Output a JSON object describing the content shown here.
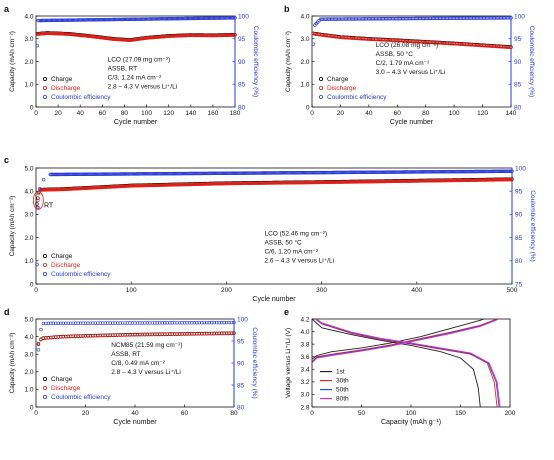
{
  "figure": {
    "panels": [
      "a",
      "b",
      "c",
      "d",
      "e"
    ]
  },
  "colors": {
    "charge": "#000000",
    "discharge": "#e8231b",
    "ce": "#2a3bd6",
    "e_1st": "#222222",
    "e_30th": "#e4281e",
    "e_50th": "#3547cc",
    "e_80th": "#d431cf"
  },
  "chart_data": [
    {
      "panel": "a",
      "type": "scatter",
      "xlabel": "Cycle number",
      "ylabel": "Capacity (mAh cm⁻²)",
      "y2label": "Coulombic efficiency (%)",
      "xlim": [
        0,
        180
      ],
      "ylim": [
        0,
        4.0
      ],
      "y2lim": [
        80,
        100
      ],
      "xticks": [
        "0",
        "20",
        "40",
        "60",
        "80",
        "100",
        "120",
        "140",
        "160",
        "180"
      ],
      "yticks": [
        "0",
        "1.0",
        "2.0",
        "3.0",
        "4.0"
      ],
      "y2ticks": [
        "80",
        "85",
        "90",
        "95",
        "100"
      ],
      "grid": false,
      "legend": [
        "Charge",
        "Discharge",
        "Coulombic efficiency"
      ],
      "legend_position": "bottom-left",
      "annotation": [
        "LCO (27.09 mg cm⁻²)",
        "ASSB, RT",
        "C/3, 1.24 mA cm⁻²",
        "2.8 – 4.3 V versus Li⁺/Li"
      ],
      "series": [
        {
          "name": "Charge",
          "axis": "left",
          "x_range": [
            1,
            180
          ],
          "points": [
            [
              1,
              3.22
            ],
            [
              10,
              3.26
            ],
            [
              30,
              3.22
            ],
            [
              50,
              3.12
            ],
            [
              70,
              3.0
            ],
            [
              85,
              2.95
            ],
            [
              100,
              3.05
            ],
            [
              120,
              3.13
            ],
            [
              140,
              3.17
            ],
            [
              160,
              3.16
            ],
            [
              180,
              3.18
            ]
          ]
        },
        {
          "name": "Discharge",
          "axis": "left",
          "x_range": [
            1,
            180
          ],
          "points": [
            [
              1,
              3.2
            ],
            [
              10,
              3.24
            ],
            [
              30,
              3.2
            ],
            [
              50,
              3.1
            ],
            [
              70,
              2.98
            ],
            [
              85,
              2.93
            ],
            [
              100,
              3.03
            ],
            [
              120,
              3.11
            ],
            [
              140,
              3.15
            ],
            [
              160,
              3.14
            ],
            [
              180,
              3.16
            ]
          ]
        },
        {
          "name": "Coulombic efficiency",
          "axis": "right",
          "x_range": [
            1,
            180
          ],
          "first_point": 93.5,
          "points": [
            [
              2,
              99.0
            ],
            [
              180,
              99.6
            ]
          ]
        }
      ]
    },
    {
      "panel": "b",
      "type": "scatter",
      "xlabel": "Cycle number",
      "ylabel": "Capacity (mAh cm⁻²)",
      "y2label": "Coulombic efficiency (%)",
      "xlim": [
        0,
        140
      ],
      "ylim": [
        0,
        4.0
      ],
      "y2lim": [
        80,
        100
      ],
      "xticks": [
        "0",
        "20",
        "40",
        "60",
        "80",
        "100",
        "120",
        "140"
      ],
      "yticks": [
        "0",
        "1.0",
        "2.0",
        "3.0",
        "4.0"
      ],
      "y2ticks": [
        "80",
        "85",
        "90",
        "95",
        "100"
      ],
      "grid": false,
      "legend": [
        "Charge",
        "Discharge",
        "Coulombic efficiency"
      ],
      "legend_position": "bottom-left",
      "annotation": [
        "LCO (26.08 mg cm⁻²)",
        "ASSB, 50 °C",
        "C/2, 1.79 mA cm⁻²",
        "3.0 – 4.3 V versus Li⁺/Li"
      ],
      "series": [
        {
          "name": "Charge",
          "axis": "left",
          "x_range": [
            1,
            140
          ],
          "points": [
            [
              1,
              3.24
            ],
            [
              5,
              3.2
            ],
            [
              20,
              3.08
            ],
            [
              40,
              3.0
            ],
            [
              60,
              2.94
            ],
            [
              80,
              2.87
            ],
            [
              100,
              2.8
            ],
            [
              120,
              2.72
            ],
            [
              140,
              2.64
            ]
          ]
        },
        {
          "name": "Discharge",
          "axis": "left",
          "x_range": [
            1,
            140
          ],
          "points": [
            [
              1,
              3.22
            ],
            [
              5,
              3.18
            ],
            [
              20,
              3.06
            ],
            [
              40,
              2.98
            ],
            [
              60,
              2.92
            ],
            [
              80,
              2.85
            ],
            [
              100,
              2.78
            ],
            [
              120,
              2.7
            ],
            [
              140,
              2.62
            ]
          ]
        },
        {
          "name": "Coulombic efficiency",
          "axis": "right",
          "x_range": [
            1,
            140
          ],
          "first_point": 93.8,
          "points": [
            [
              2,
              98.0
            ],
            [
              6,
              99.3
            ],
            [
              140,
              99.6
            ]
          ]
        }
      ]
    },
    {
      "panel": "c",
      "type": "scatter",
      "xlabel": "Cycle number",
      "ylabel": "Capacity (mAh cm⁻²)",
      "y2label": "Coulombic efficiency (%)",
      "xlim": [
        0,
        500
      ],
      "ylim": [
        0,
        5.0
      ],
      "y2lim": [
        75,
        100
      ],
      "xticks": [
        "0",
        "100",
        "200",
        "300",
        "400",
        "500"
      ],
      "yticks": [
        "0",
        "1.0",
        "2.0",
        "3.0",
        "4.0",
        "5.0"
      ],
      "y2ticks": [
        "75",
        "80",
        "85",
        "90",
        "95",
        "100"
      ],
      "grid": false,
      "legend": [
        "Charge",
        "Discharge",
        "Coulombic efficiency"
      ],
      "legend_position": "bottom-left",
      "annotation": [
        "LCO (52.46 mg cm⁻²)",
        "ASSB, 50 °C",
        "C/6, 1.20 mA cm⁻²",
        "2.6 – 4.3 V versus Li⁺/Li"
      ],
      "inset_label": "RT",
      "series": [
        {
          "name": "Charge",
          "axis": "left",
          "x_range": [
            1,
            500
          ],
          "first_points": [
            [
              1,
              3.45
            ],
            [
              2,
              3.7
            ],
            [
              3,
              3.95
            ]
          ],
          "points": [
            [
              5,
              4.07
            ],
            [
              30,
              4.1
            ],
            [
              100,
              4.25
            ],
            [
              200,
              4.35
            ],
            [
              300,
              4.4
            ],
            [
              400,
              4.46
            ],
            [
              500,
              4.52
            ]
          ]
        },
        {
          "name": "Discharge",
          "axis": "left",
          "x_range": [
            1,
            500
          ],
          "first_points": [
            [
              1,
              3.3
            ],
            [
              2,
              3.6
            ],
            [
              3,
              3.9
            ]
          ],
          "points": [
            [
              5,
              4.05
            ],
            [
              30,
              4.08
            ],
            [
              100,
              4.23
            ],
            [
              200,
              4.33
            ],
            [
              300,
              4.38
            ],
            [
              400,
              4.44
            ],
            [
              500,
              4.5
            ]
          ]
        },
        {
          "name": "Coulombic efficiency",
          "axis": "right",
          "x_range": [
            1,
            500
          ],
          "first_points": [
            [
              1,
              79.2
            ],
            [
              2,
              91.5
            ],
            [
              4,
              95.5
            ],
            [
              8,
              97.5
            ]
          ],
          "points": [
            [
              15,
              98.6
            ],
            [
              500,
              99.3
            ]
          ]
        }
      ]
    },
    {
      "panel": "d",
      "type": "scatter",
      "xlabel": "Cycle number",
      "ylabel": "Capacity (mAh cm⁻²)",
      "y2label": "Coulombic efficiency (%)",
      "xlim": [
        0,
        80
      ],
      "ylim": [
        0,
        5.0
      ],
      "y2lim": [
        80,
        100
      ],
      "xticks": [
        "0",
        "20",
        "40",
        "60",
        "80"
      ],
      "yticks": [
        "0",
        "1.0",
        "2.0",
        "3.0",
        "4.0",
        "5.0"
      ],
      "y2ticks": [
        "80",
        "85",
        "90",
        "95",
        "100"
      ],
      "grid": false,
      "legend": [
        "Charge",
        "Discharge",
        "Coulombic efficiency"
      ],
      "legend_position": "bottom-left",
      "annotation": [
        "NCM85 (21.59 mg cm⁻²)",
        "ASSB, RT",
        "C/8, 0.49 mA cm⁻²",
        "2.8 – 4.3 V versus Li⁺/Li"
      ],
      "series": [
        {
          "name": "Charge",
          "axis": "left",
          "x_range": [
            1,
            80
          ],
          "first_points": [
            [
              1,
              3.6
            ],
            [
              2,
              3.85
            ]
          ],
          "points": [
            [
              3,
              3.92
            ],
            [
              10,
              4.0
            ],
            [
              20,
              4.05
            ],
            [
              40,
              4.12
            ],
            [
              60,
              4.16
            ],
            [
              80,
              4.2
            ]
          ]
        },
        {
          "name": "Discharge",
          "axis": "left",
          "x_range": [
            1,
            80
          ],
          "first_points": [
            [
              1,
              3.55
            ],
            [
              2,
              3.82
            ]
          ],
          "points": [
            [
              3,
              3.9
            ],
            [
              10,
              3.98
            ],
            [
              20,
              4.03
            ],
            [
              40,
              4.1
            ],
            [
              60,
              4.14
            ],
            [
              80,
              4.18
            ]
          ]
        },
        {
          "name": "Coulombic efficiency",
          "axis": "right",
          "x_range": [
            1,
            80
          ],
          "first_points": [
            [
              1,
              93.0
            ],
            [
              2,
              97.6
            ]
          ],
          "points": [
            [
              3,
              99.0
            ],
            [
              80,
              99.2
            ]
          ]
        }
      ]
    },
    {
      "panel": "e",
      "type": "line",
      "xlabel": "Capacity (mAh g⁻¹)",
      "ylabel": "Voltage versus Li⁺/Li (V)",
      "xlim": [
        0,
        200
      ],
      "ylim": [
        2.8,
        4.2
      ],
      "xticks": [
        "0",
        "50",
        "100",
        "150",
        "200"
      ],
      "yticks": [
        "2.8",
        "3.0",
        "3.2",
        "3.4",
        "3.6",
        "3.8",
        "4.0",
        "4.2"
      ],
      "grid": false,
      "legend": [
        "1st",
        "30th",
        "50th",
        "80th"
      ],
      "legend_position": "bottom-left",
      "series": [
        {
          "name": "1st",
          "charge": [
            [
              0,
              3.56
            ],
            [
              5,
              3.62
            ],
            [
              20,
              3.68
            ],
            [
              50,
              3.74
            ],
            [
              80,
              3.82
            ],
            [
              110,
              3.92
            ],
            [
              140,
              4.05
            ],
            [
              170,
              4.18
            ],
            [
              182,
              4.25
            ]
          ],
          "discharge": [
            [
              0,
              4.2
            ],
            [
              10,
              4.06
            ],
            [
              40,
              3.95
            ],
            [
              70,
              3.86
            ],
            [
              100,
              3.78
            ],
            [
              130,
              3.68
            ],
            [
              150,
              3.58
            ],
            [
              163,
              3.4
            ],
            [
              168,
              3.1
            ],
            [
              170,
              2.8
            ]
          ]
        },
        {
          "name": "30th",
          "charge": [
            [
              0,
              3.52
            ],
            [
              5,
              3.6
            ],
            [
              20,
              3.64
            ],
            [
              50,
              3.71
            ],
            [
              80,
              3.79
            ],
            [
              110,
              3.89
            ],
            [
              140,
              3.99
            ],
            [
              170,
              4.1
            ],
            [
              195,
              4.25
            ]
          ],
          "discharge": [
            [
              0,
              4.24
            ],
            [
              10,
              4.12
            ],
            [
              40,
              3.97
            ],
            [
              70,
              3.87
            ],
            [
              100,
              3.8
            ],
            [
              130,
              3.72
            ],
            [
              160,
              3.64
            ],
            [
              177,
              3.5
            ],
            [
              184,
              3.2
            ],
            [
              187,
              2.8
            ]
          ]
        },
        {
          "name": "50th",
          "charge": [
            [
              0,
              3.51
            ],
            [
              5,
              3.59
            ],
            [
              20,
              3.63
            ],
            [
              50,
              3.7
            ],
            [
              80,
              3.78
            ],
            [
              110,
              3.88
            ],
            [
              140,
              3.98
            ],
            [
              170,
              4.09
            ],
            [
              196,
              4.25
            ]
          ],
          "discharge": [
            [
              0,
              4.24
            ],
            [
              10,
              4.13
            ],
            [
              40,
              3.98
            ],
            [
              70,
              3.88
            ],
            [
              100,
              3.81
            ],
            [
              130,
              3.73
            ],
            [
              160,
              3.65
            ],
            [
              178,
              3.5
            ],
            [
              186,
              3.2
            ],
            [
              189,
              2.8
            ]
          ]
        },
        {
          "name": "80th",
          "charge": [
            [
              0,
              3.5
            ],
            [
              5,
              3.58
            ],
            [
              20,
              3.62
            ],
            [
              50,
              3.69
            ],
            [
              80,
              3.77
            ],
            [
              110,
              3.87
            ],
            [
              140,
              3.97
            ],
            [
              170,
              4.08
            ],
            [
              197,
              4.25
            ]
          ],
          "discharge": [
            [
              0,
              4.25
            ],
            [
              10,
              4.14
            ],
            [
              40,
              3.99
            ],
            [
              70,
              3.89
            ],
            [
              100,
              3.82
            ],
            [
              130,
              3.74
            ],
            [
              160,
              3.66
            ],
            [
              179,
              3.5
            ],
            [
              187,
              3.2
            ],
            [
              190,
              2.8
            ]
          ]
        }
      ]
    }
  ]
}
